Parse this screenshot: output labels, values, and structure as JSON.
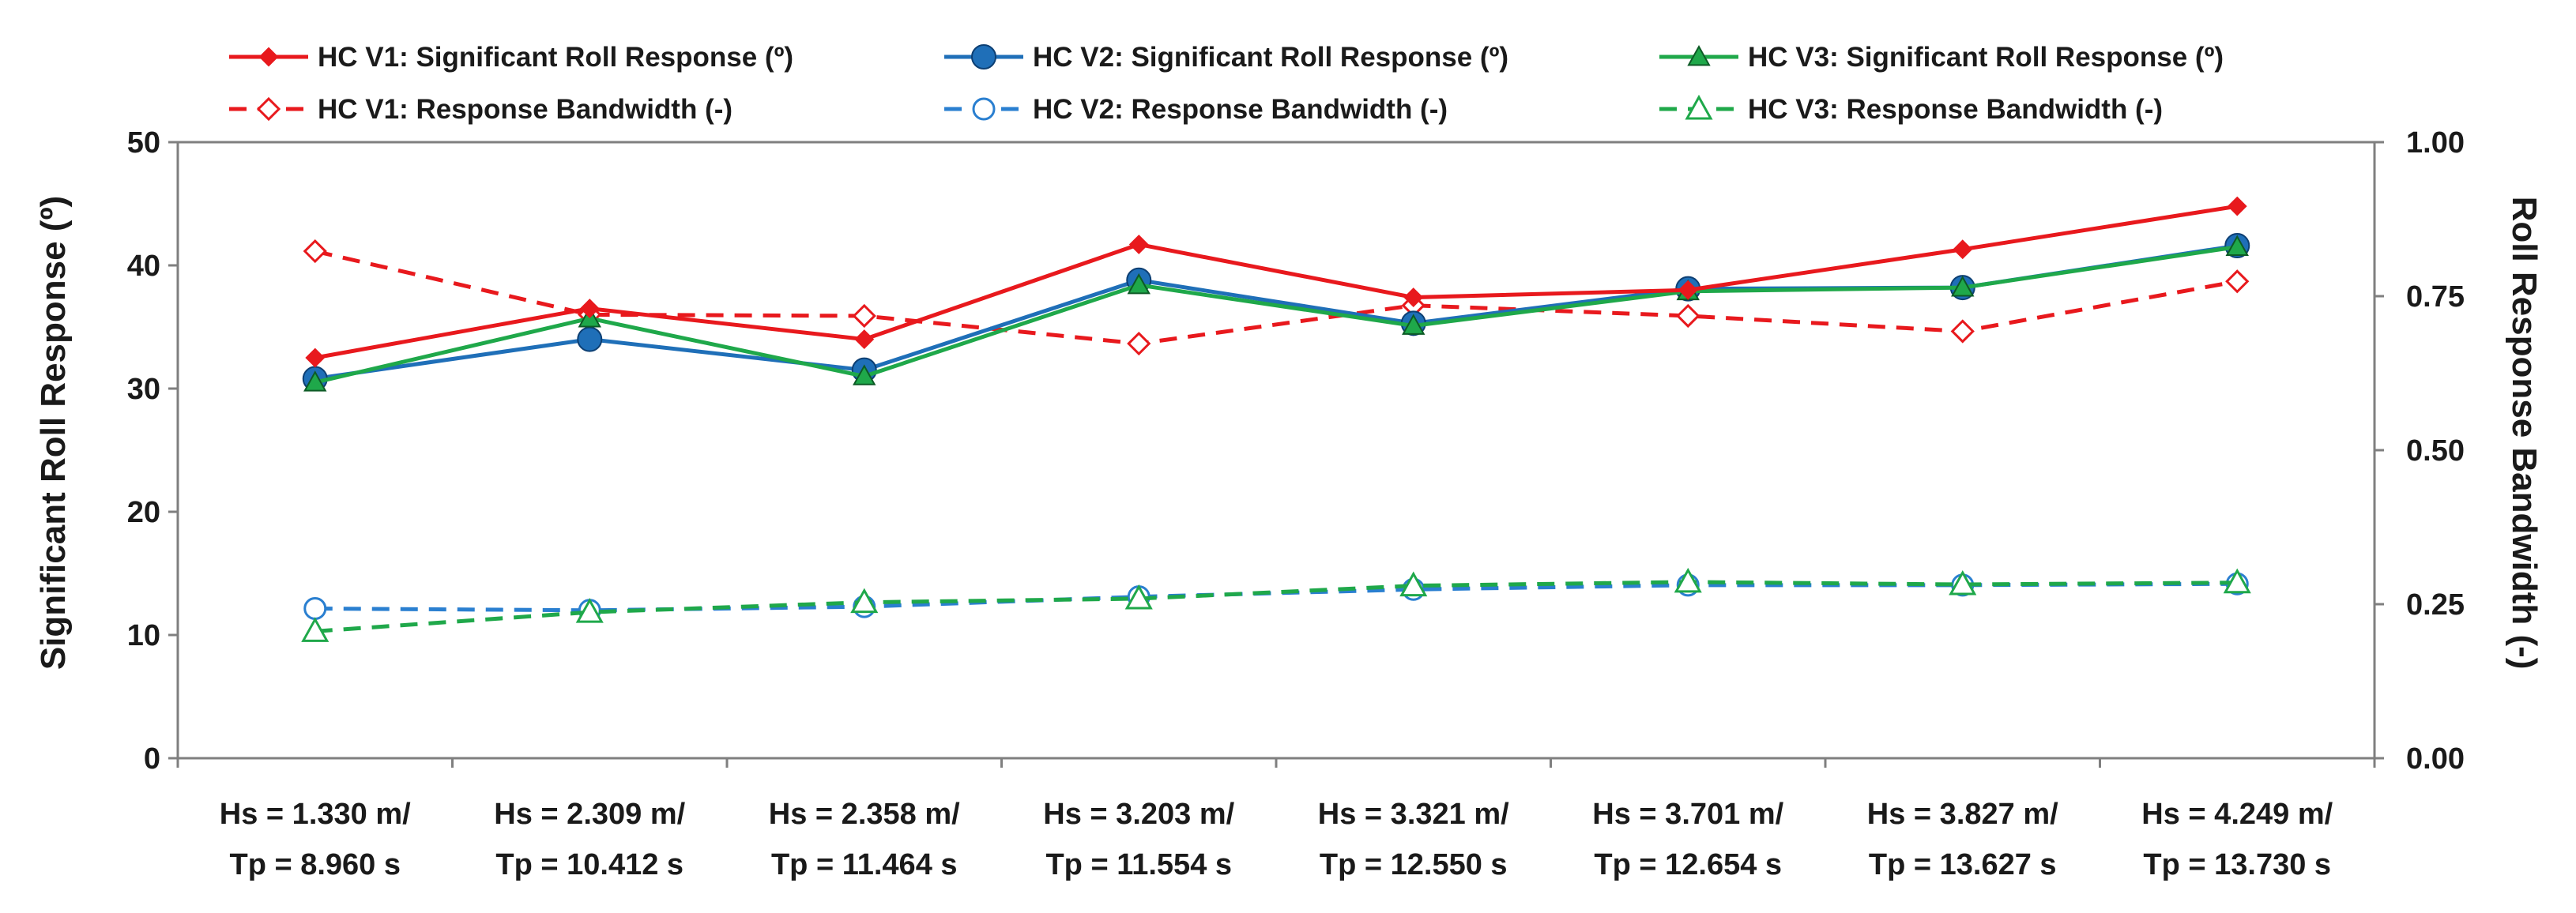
{
  "chart_data": {
    "type": "line",
    "categories": [
      {
        "line1": "Hs = 1.330 m/",
        "line2": "Tp = 8.960 s"
      },
      {
        "line1": "Hs = 2.309 m/",
        "line2": "Tp = 10.412 s"
      },
      {
        "line1": "Hs = 2.358 m/",
        "line2": "Tp = 11.464 s"
      },
      {
        "line1": "Hs = 3.203 m/",
        "line2": "Tp = 11.554 s"
      },
      {
        "line1": "Hs = 3.321 m/",
        "line2": "Tp = 12.550 s"
      },
      {
        "line1": "Hs = 3.701 m/",
        "line2": "Tp = 12.654 s"
      },
      {
        "line1": "Hs = 3.827 m/",
        "line2": "Tp = 13.627 s"
      },
      {
        "line1": "Hs = 4.249 m/",
        "line2": "Tp = 13.730 s"
      }
    ],
    "ylabel": "Significant Roll Response (º)",
    "y2label": "Roll Response Bandwidth (-)",
    "ylim": [
      0,
      50
    ],
    "yticks": [
      "0",
      "10",
      "20",
      "30",
      "40",
      "50"
    ],
    "y2lim": [
      0,
      1
    ],
    "y2ticks": [
      "0.00",
      "0.25",
      "0.50",
      "0.75",
      "1.00"
    ],
    "legend_position": "top",
    "series": [
      {
        "name": "HC V1: Significant Roll Response (º)",
        "axis": "left",
        "color": "#e8191d",
        "dash": "solid",
        "marker": "diamond-filled",
        "values": [
          32.5,
          36.5,
          34.0,
          41.7,
          37.4,
          38.0,
          41.3,
          44.8
        ]
      },
      {
        "name": "HC V2: Significant Roll Response (º)",
        "axis": "left",
        "color": "#1f6fb8",
        "dash": "solid",
        "marker": "circle-filled",
        "values": [
          30.8,
          34.0,
          31.5,
          38.8,
          35.3,
          38.1,
          38.2,
          41.6
        ]
      },
      {
        "name": "HC V3: Significant Roll Response (º)",
        "axis": "left",
        "color": "#1fa84a",
        "dash": "solid",
        "marker": "triangle-filled",
        "values": [
          30.5,
          35.7,
          31.0,
          38.4,
          35.1,
          37.9,
          38.2,
          41.5
        ]
      },
      {
        "name": "HC V1: Response Bandwidth (-)",
        "axis": "right",
        "color": "#e8191d",
        "dash": "dashed",
        "marker": "diamond-open",
        "values": [
          0.823,
          0.72,
          0.718,
          0.673,
          0.735,
          0.718,
          0.693,
          0.774
        ]
      },
      {
        "name": "HC V2: Response Bandwidth (-)",
        "axis": "right",
        "color": "#2a7fd0",
        "dash": "dashed",
        "marker": "circle-open",
        "values": [
          0.243,
          0.24,
          0.246,
          0.262,
          0.274,
          0.281,
          0.281,
          0.283
        ]
      },
      {
        "name": "HC V3: Response Bandwidth (-)",
        "axis": "right",
        "color": "#1fa84a",
        "dash": "dashed",
        "marker": "triangle-open",
        "values": [
          0.206,
          0.237,
          0.253,
          0.259,
          0.28,
          0.286,
          0.282,
          0.285
        ]
      }
    ]
  }
}
